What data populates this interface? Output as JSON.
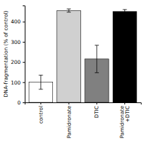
{
  "chart_data": {
    "type": "bar",
    "categories": [
      "control",
      "Pamidronate",
      "DTIC",
      "Pamidronate\n+DTIC"
    ],
    "values": [
      100,
      455,
      215,
      450
    ],
    "errors": [
      35,
      8,
      68,
      10
    ],
    "colors": [
      "#ffffff",
      "#d0d0d0",
      "#808080",
      "#000000"
    ],
    "ylabel": "DNA-fragmentation (% of control)",
    "ylim": [
      0,
      480
    ],
    "yticks": [
      0,
      100,
      200,
      300,
      400
    ]
  }
}
